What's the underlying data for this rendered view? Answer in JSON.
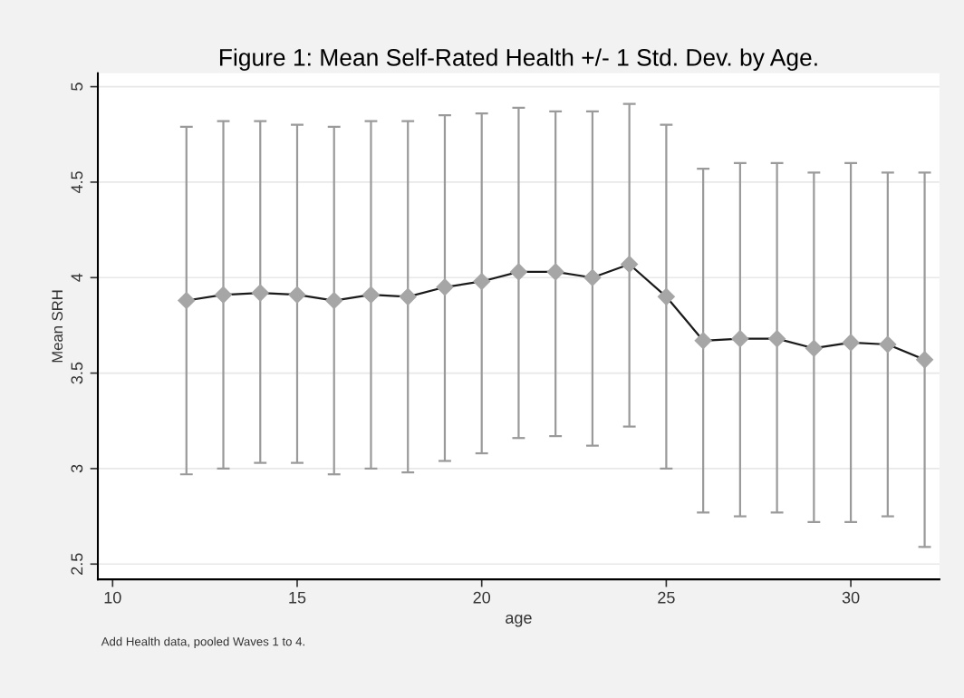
{
  "chart_data": {
    "type": "line",
    "title": "Figure 1: Mean Self-Rated Health +/- 1 Std. Dev. by Age.",
    "xlabel": "age",
    "ylabel": "Mean SRH",
    "annotations": [
      "Add Health data, pooled Waves 1 to 4."
    ],
    "x": [
      12,
      13,
      14,
      15,
      16,
      17,
      18,
      19,
      20,
      21,
      22,
      23,
      24,
      25,
      26,
      27,
      28,
      29,
      30,
      31,
      32
    ],
    "series": [
      {
        "color": "#a6a6a6",
        "values": [
          3.88,
          3.91,
          3.92,
          3.91,
          3.88,
          3.91,
          3.9,
          3.95,
          3.98,
          4.03,
          4.03,
          4.0,
          4.07,
          3.9,
          3.67,
          3.68,
          3.68,
          3.63,
          3.66,
          3.65,
          3.57
        ],
        "errors": [
          [
            2.97,
            4.79
          ],
          [
            3.0,
            4.82
          ],
          [
            3.03,
            4.82
          ],
          [
            3.03,
            4.8
          ],
          [
            2.97,
            4.79
          ],
          [
            3.0,
            4.82
          ],
          [
            2.98,
            4.82
          ],
          [
            3.04,
            4.85
          ],
          [
            3.08,
            4.86
          ],
          [
            3.16,
            4.89
          ],
          [
            3.17,
            4.87
          ],
          [
            3.12,
            4.87
          ],
          [
            3.22,
            4.91
          ],
          [
            3.0,
            4.8
          ],
          [
            2.77,
            4.57
          ],
          [
            2.75,
            4.6
          ],
          [
            2.77,
            4.6
          ],
          [
            2.72,
            4.55
          ],
          [
            2.72,
            4.6
          ],
          [
            2.75,
            4.55
          ],
          [
            2.59,
            4.55
          ]
        ]
      }
    ],
    "xlim": [
      9.6,
      32.4
    ],
    "xticks": [
      10,
      15,
      20,
      25,
      30
    ],
    "ylim": [
      2.42,
      5.07
    ],
    "yticks": [
      2.5,
      3,
      3.5,
      4,
      4.5,
      5
    ],
    "grid": "y",
    "marker": "diamond",
    "line_style": "solid"
  }
}
